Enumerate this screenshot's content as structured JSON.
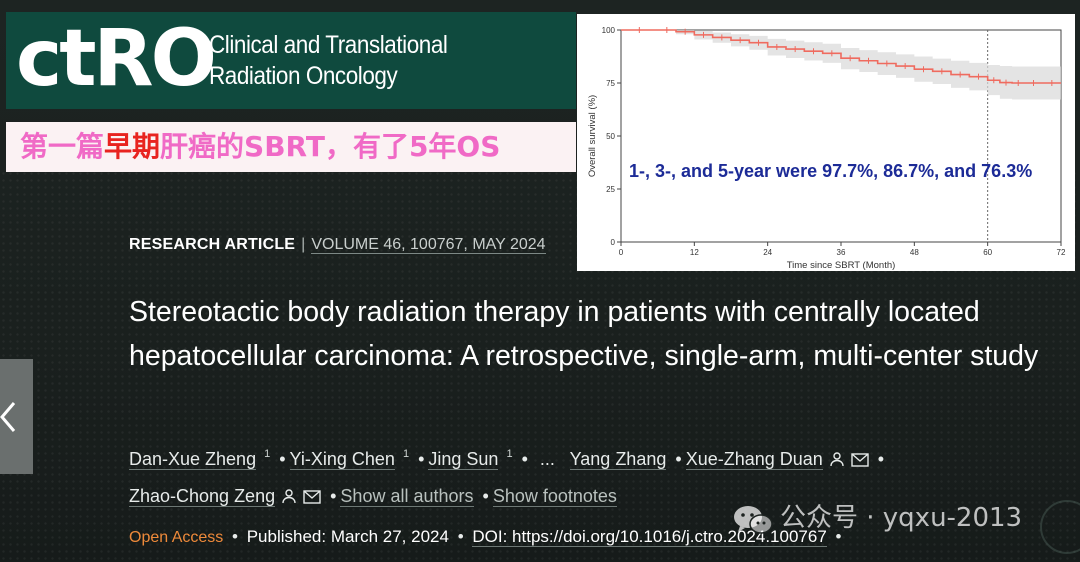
{
  "header": {
    "logo_text": "ctRO",
    "journal_line1": "Clinical and Translational",
    "journal_line2": "Radiation Oncology",
    "brand_color": "#0f4a3e"
  },
  "caption": {
    "part1": "第一篇",
    "part2": "早期",
    "part3": "肝癌的SBRT，有了5年OS"
  },
  "article": {
    "type": "RESEARCH ARTICLE",
    "separator": "|",
    "volume": "VOLUME 46, 100767, MAY 2024",
    "title": "Stereotactic body radiation therapy in patients with centrally located hepatocellular carcinoma: A retrospective, single-arm, multi-center study",
    "authors": [
      {
        "name": "Dan-Xue Zheng",
        "sup": "1"
      },
      {
        "name": "Yi-Xing Chen",
        "sup": "1"
      },
      {
        "name": "Jing Sun",
        "sup": "1"
      },
      {
        "name": "Yang Zhang"
      },
      {
        "name": "Xue-Zhang Duan"
      },
      {
        "name": "Zhao-Chong Zeng"
      }
    ],
    "ellipsis": "...",
    "bullet": "•",
    "show_all_authors": "Show all authors",
    "show_footnotes": "Show footnotes",
    "open_access": "Open Access",
    "published": "Published: March 27, 2024",
    "doi": "DOI: https://doi.org/10.1016/j.ctro.2024.100767"
  },
  "watermark": {
    "text": "公众号 · yqxu-2013",
    "icon": "wechat-icon"
  },
  "chart_data": {
    "type": "line",
    "xlabel": "Time since SBRT (Month)",
    "ylabel": "Overall survival (%)",
    "xlim": [
      0,
      72
    ],
    "ylim": [
      0,
      100
    ],
    "xticks": [
      0,
      12,
      24,
      36,
      48,
      60,
      72
    ],
    "yticks": [
      0,
      25,
      50,
      75,
      100
    ],
    "reference_line_x": 60,
    "annotation": "1-, 3-, and 5-year were 97.7%, 86.7%, and 76.3%",
    "series": [
      {
        "color": "#ef6b5f",
        "x": [
          0,
          6,
          9,
          12,
          15,
          18,
          21,
          24,
          27,
          30,
          33,
          36,
          39,
          42,
          45,
          48,
          51,
          54,
          57,
          60,
          62,
          64,
          66,
          69,
          72
        ],
        "y": [
          100,
          100,
          99.2,
          97.7,
          96.5,
          95.2,
          94.0,
          92.0,
          91.0,
          90.0,
          89.0,
          86.7,
          85.5,
          84.2,
          83.0,
          81.5,
          80.5,
          79.0,
          78.0,
          76.3,
          75.2,
          75.0,
          75.0,
          75.0,
          75.0
        ],
        "ci_upper": [
          100,
          100,
          100,
          99.5,
          98.8,
          98.0,
          97.2,
          95.8,
          95.0,
          94.2,
          93.5,
          91.5,
          90.5,
          89.5,
          88.5,
          87.5,
          86.5,
          85.5,
          84.5,
          83.5,
          83.0,
          82.8,
          82.8,
          82.8,
          82.8
        ],
        "ci_lower": [
          100,
          100,
          98.0,
          95.5,
          94.0,
          92.3,
          90.7,
          88.0,
          86.8,
          85.6,
          84.5,
          81.5,
          80.2,
          78.8,
          77.4,
          75.6,
          74.5,
          72.7,
          71.5,
          69.3,
          67.6,
          67.2,
          67.2,
          67.2,
          67.2
        ]
      }
    ]
  }
}
